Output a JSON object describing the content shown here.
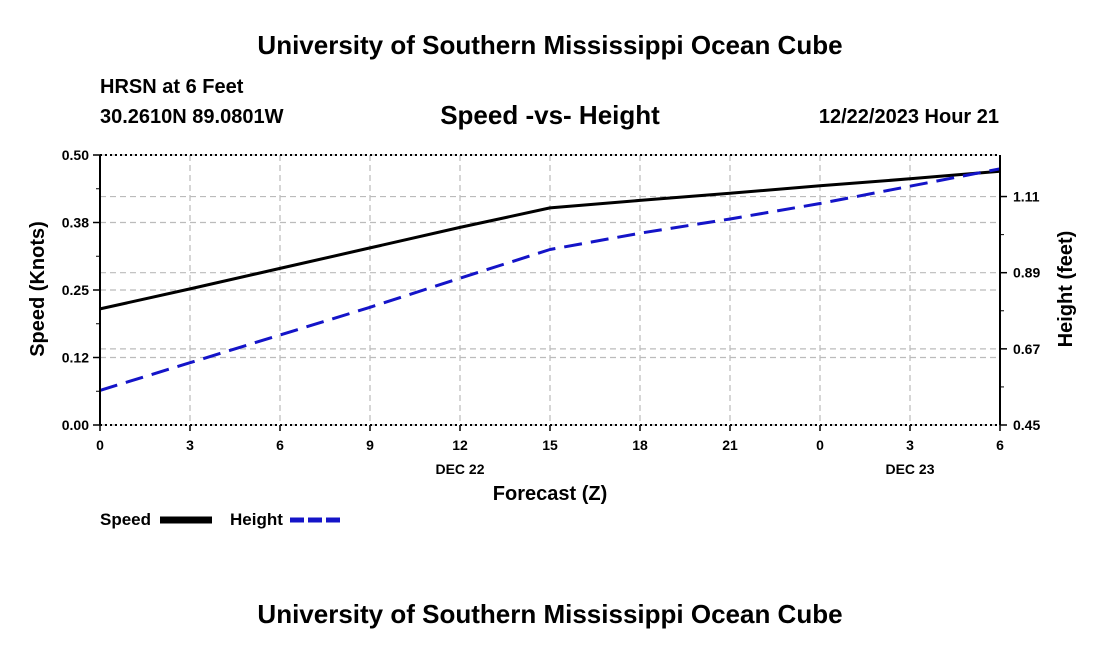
{
  "header": {
    "title": "University of Southern Mississippi Ocean Cube",
    "station": "HRSN at 6 Feet",
    "coords": "30.2610N  89.0801W",
    "chart_title": "Speed -vs- Height",
    "datetime": "12/22/2023 Hour 21"
  },
  "footer": {
    "title": "University of Southern Mississippi Ocean Cube"
  },
  "colors": {
    "speed": "#000000",
    "height": "#1414c8",
    "grid": "#bbbbbb"
  },
  "chart_data": {
    "type": "line",
    "title": "Speed -vs- Height",
    "xlabel": "Forecast (Z)",
    "ylabel": "Speed (Knots)",
    "y2label": "Height (feet)",
    "x": [
      0,
      3,
      6,
      9,
      12,
      15,
      18,
      21,
      24,
      27,
      30
    ],
    "x_tick_labels": [
      "0",
      "3",
      "6",
      "9",
      "12",
      "15",
      "18",
      "21",
      "0",
      "3",
      "6"
    ],
    "date_labels": [
      {
        "x": 12,
        "label": "DEC 22"
      },
      {
        "x": 27,
        "label": "DEC 23"
      }
    ],
    "xlim": [
      0,
      30
    ],
    "ylim": [
      0,
      0.5
    ],
    "y_ticks": [
      0.0,
      0.125,
      0.25,
      0.375,
      0.5
    ],
    "y_tick_labels": [
      "0.00",
      "0.12",
      "0.25",
      "0.38",
      "0.50"
    ],
    "y2lim": [
      0.45,
      1.23
    ],
    "y2_ticks": [
      0.45,
      0.67,
      0.89,
      1.11
    ],
    "y2_tick_labels": [
      "0.45",
      "0.67",
      "0.89",
      "1.11"
    ],
    "grid": true,
    "series": [
      {
        "name": "Speed",
        "axis": "left",
        "style": "solid",
        "x": [
          0,
          3,
          6,
          9,
          12,
          15,
          18,
          21,
          24,
          27,
          30
        ],
        "values": [
          0.215,
          0.252,
          0.29,
          0.328,
          0.366,
          0.402,
          0.416,
          0.429,
          0.443,
          0.456,
          0.47
        ]
      },
      {
        "name": "Height",
        "axis": "right",
        "style": "dashed",
        "x": [
          0,
          3,
          6,
          9,
          12,
          15,
          18,
          21,
          24,
          27,
          30
        ],
        "values": [
          0.55,
          0.63,
          0.71,
          0.79,
          0.874,
          0.957,
          1.004,
          1.045,
          1.09,
          1.14,
          1.19
        ]
      }
    ],
    "legend": [
      {
        "label": "Speed",
        "style": "solid"
      },
      {
        "label": "Height",
        "style": "dashed"
      }
    ],
    "legend_position": "bottom-left"
  }
}
